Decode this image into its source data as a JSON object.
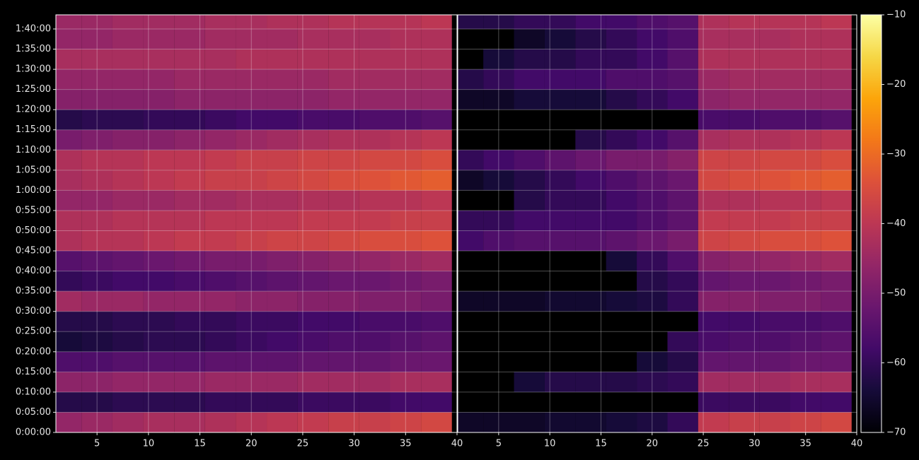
{
  "chart_data": [
    {
      "type": "heatmap",
      "colormap": "inferno",
      "vlim": [
        -70,
        -10
      ],
      "x": [
        2,
        5,
        8,
        11,
        14,
        17,
        20,
        23,
        26,
        29,
        32,
        35,
        38
      ],
      "y": [
        0,
        300,
        600,
        900,
        1200,
        1500,
        1800,
        2100,
        2400,
        2700,
        3000,
        3300,
        3600,
        3900,
        4200,
        4500,
        4800,
        5100,
        5400,
        5700,
        6000
      ],
      "values": [
        [
          -46,
          -45,
          -44,
          -43,
          -43,
          -42,
          -41,
          -40,
          -39,
          -38,
          -38,
          -37,
          -36
        ],
        [
          -62,
          -62,
          -61,
          -61,
          -61,
          -60,
          -60,
          -60,
          -59,
          -59,
          -59,
          -58,
          -58
        ],
        [
          -47,
          -47,
          -46,
          -46,
          -46,
          -45,
          -45,
          -45,
          -44,
          -44,
          -44,
          -43,
          -43
        ],
        [
          -56,
          -56,
          -55,
          -55,
          -55,
          -54,
          -54,
          -54,
          -53,
          -53,
          -53,
          -52,
          -52
        ],
        [
          -64,
          -63,
          -62,
          -61,
          -61,
          -60,
          -59,
          -58,
          -57,
          -56,
          -56,
          -55,
          -54
        ],
        [
          -62,
          -62,
          -61,
          -61,
          -60,
          -60,
          -59,
          -59,
          -58,
          -58,
          -57,
          -57,
          -56
        ],
        [
          -44,
          -45,
          -45,
          -46,
          -46,
          -46,
          -47,
          -47,
          -48,
          -48,
          -49,
          -49,
          -50
        ],
        [
          -60,
          -59,
          -58,
          -58,
          -57,
          -56,
          -55,
          -54,
          -53,
          -52,
          -52,
          -51,
          -50
        ],
        [
          -55,
          -54,
          -53,
          -52,
          -51,
          -50,
          -50,
          -49,
          -48,
          -47,
          -46,
          -45,
          -44
        ],
        [
          -42,
          -41,
          -41,
          -40,
          -39,
          -39,
          -38,
          -37,
          -37,
          -36,
          -35,
          -35,
          -34
        ],
        [
          -42,
          -42,
          -41,
          -41,
          -41,
          -40,
          -40,
          -40,
          -39,
          -39,
          -39,
          -38,
          -38
        ],
        [
          -46,
          -46,
          -45,
          -45,
          -44,
          -44,
          -43,
          -43,
          -42,
          -42,
          -41,
          -41,
          -40
        ],
        [
          -43,
          -42,
          -41,
          -40,
          -39,
          -38,
          -38,
          -37,
          -36,
          -35,
          -34,
          -33,
          -32
        ],
        [
          -42,
          -41,
          -41,
          -40,
          -40,
          -39,
          -38,
          -38,
          -37,
          -37,
          -36,
          -36,
          -35
        ],
        [
          -50,
          -49,
          -48,
          -48,
          -47,
          -46,
          -45,
          -44,
          -43,
          -42,
          -42,
          -41,
          -40
        ],
        [
          -62,
          -61,
          -61,
          -60,
          -60,
          -59,
          -58,
          -58,
          -57,
          -57,
          -56,
          -56,
          -55
        ],
        [
          -48,
          -48,
          -48,
          -48,
          -47,
          -47,
          -47,
          -47,
          -47,
          -46,
          -46,
          -46,
          -46
        ],
        [
          -46,
          -46,
          -46,
          -46,
          -45,
          -45,
          -45,
          -45,
          -45,
          -44,
          -44,
          -44,
          -44
        ],
        [
          -43,
          -43,
          -43,
          -43,
          -43,
          -43,
          -42,
          -42,
          -42,
          -42,
          -42,
          -42,
          -42
        ],
        [
          -46,
          -46,
          -45,
          -45,
          -45,
          -44,
          -44,
          -44,
          -43,
          -43,
          -43,
          -42,
          -42
        ],
        [
          -45,
          -45,
          -44,
          -44,
          -44,
          -43,
          -43,
          -42,
          -42,
          -41,
          -41,
          -41,
          -40
        ]
      ],
      "xlim": [
        1,
        40
      ],
      "ylim": [
        0,
        6210
      ],
      "xticks": [
        5,
        10,
        15,
        20,
        25,
        30,
        35,
        40
      ],
      "yticks": [
        {
          "value": 0,
          "label": "0:00:00"
        },
        {
          "value": 300,
          "label": "0:05:00"
        },
        {
          "value": 600,
          "label": "0:10:00"
        },
        {
          "value": 900,
          "label": "0:15:00"
        },
        {
          "value": 1200,
          "label": "0:20:00"
        },
        {
          "value": 1500,
          "label": "0:25:00"
        },
        {
          "value": 1800,
          "label": "0:30:00"
        },
        {
          "value": 2100,
          "label": "0:35:00"
        },
        {
          "value": 2400,
          "label": "0:40:00"
        },
        {
          "value": 2700,
          "label": "0:45:00"
        },
        {
          "value": 3000,
          "label": "0:50:00"
        },
        {
          "value": 3300,
          "label": "0:55:00"
        },
        {
          "value": 3600,
          "label": "1:00:00"
        },
        {
          "value": 3900,
          "label": "1:05:00"
        },
        {
          "value": 4200,
          "label": "1:10:00"
        },
        {
          "value": 4500,
          "label": "1:15:00"
        },
        {
          "value": 4800,
          "label": "1:20:00"
        },
        {
          "value": 5100,
          "label": "1:25:00"
        },
        {
          "value": 5400,
          "label": "1:30:00"
        },
        {
          "value": 5700,
          "label": "1:35:00"
        },
        {
          "value": 6000,
          "label": "1:40:00"
        }
      ],
      "grid": true
    },
    {
      "type": "heatmap",
      "colormap": "inferno",
      "vlim": [
        -70,
        -10
      ],
      "x": [
        2,
        5,
        8,
        11,
        14,
        17,
        20,
        23,
        26,
        29,
        32,
        35,
        38
      ],
      "y": [
        0,
        300,
        600,
        900,
        1200,
        1500,
        1800,
        2100,
        2400,
        2700,
        3000,
        3300,
        3600,
        3900,
        4200,
        4500,
        4800,
        5100,
        5400,
        5700,
        6000
      ],
      "values": [
        [
          -66,
          -66,
          -66,
          -65,
          -65,
          -64,
          -63,
          -60,
          -39,
          -38,
          -38,
          -37,
          -36
        ],
        [
          null,
          null,
          null,
          null,
          null,
          null,
          null,
          null,
          -59,
          -59,
          -59,
          -58,
          -58
        ],
        [
          null,
          null,
          -64,
          -62,
          -62,
          -62,
          -61,
          -60,
          -44,
          -44,
          -44,
          -43,
          -43
        ],
        [
          null,
          null,
          null,
          null,
          null,
          null,
          -64,
          -62,
          -53,
          -53,
          -53,
          -52,
          -52
        ],
        [
          null,
          null,
          null,
          null,
          null,
          null,
          null,
          -60,
          -57,
          -56,
          -56,
          -55,
          -54
        ],
        [
          null,
          null,
          null,
          null,
          null,
          null,
          null,
          null,
          -58,
          -58,
          -57,
          -57,
          -56
        ],
        [
          -66,
          -66,
          -66,
          -65,
          -65,
          -64,
          -63,
          -60,
          -48,
          -48,
          -49,
          -49,
          -50
        ],
        [
          null,
          null,
          null,
          null,
          null,
          null,
          -62,
          -60,
          -53,
          -52,
          -52,
          -51,
          -50
        ],
        [
          null,
          null,
          null,
          null,
          null,
          -64,
          -60,
          -56,
          -48,
          -47,
          -46,
          -45,
          -44
        ],
        [
          -58,
          -56,
          -55,
          -55,
          -55,
          -54,
          -52,
          -50,
          -37,
          -36,
          -35,
          -35,
          -34
        ],
        [
          -60,
          -60,
          -58,
          -58,
          -58,
          -58,
          -56,
          -54,
          -39,
          -39,
          -39,
          -38,
          -38
        ],
        [
          null,
          null,
          -62,
          -60,
          -60,
          -58,
          -56,
          -54,
          -42,
          -42,
          -41,
          -41,
          -40
        ],
        [
          -66,
          -64,
          -62,
          -60,
          -58,
          -56,
          -54,
          -52,
          -36,
          -35,
          -34,
          -33,
          -32
        ],
        [
          -60,
          -58,
          -56,
          -54,
          -52,
          -50,
          -50,
          -48,
          -37,
          -37,
          -36,
          -36,
          -35
        ],
        [
          null,
          null,
          null,
          null,
          -62,
          -60,
          -58,
          -55,
          -43,
          -42,
          -42,
          -41,
          -40
        ],
        [
          null,
          null,
          null,
          null,
          null,
          null,
          null,
          null,
          -57,
          -57,
          -56,
          -56,
          -55
        ],
        [
          -66,
          -66,
          -64,
          -64,
          -64,
          -62,
          -60,
          -58,
          -47,
          -46,
          -46,
          -46,
          -46
        ],
        [
          -62,
          -60,
          -58,
          -58,
          -58,
          -56,
          -56,
          -55,
          -45,
          -44,
          -44,
          -44,
          -44
        ],
        [
          null,
          -64,
          -62,
          -62,
          -60,
          -60,
          -58,
          -55,
          -42,
          -42,
          -42,
          -42,
          -42
        ],
        [
          null,
          null,
          -66,
          -64,
          -62,
          -60,
          -58,
          -56,
          -43,
          -43,
          -43,
          -42,
          -42
        ],
        [
          -62,
          -62,
          -60,
          -60,
          -58,
          -58,
          -56,
          -55,
          -42,
          -41,
          -41,
          -41,
          -40
        ]
      ],
      "xlim": [
        1,
        40
      ],
      "ylim": [
        0,
        6210
      ],
      "xticks": [
        5,
        10,
        15,
        20,
        25,
        30,
        35,
        40
      ],
      "yticks": [
        0,
        300,
        600,
        900,
        1200,
        1500,
        1800,
        2100,
        2400,
        2700,
        3000,
        3300,
        3600,
        3900,
        4200,
        4500,
        4800,
        5100,
        5400,
        5700,
        6000
      ],
      "grid": true,
      "colorbar": {
        "lim": [
          -70,
          -10
        ],
        "ticks": [
          {
            "value": -70,
            "label": "−70"
          },
          {
            "value": -60,
            "label": "−60"
          },
          {
            "value": -50,
            "label": "−50"
          },
          {
            "value": -40,
            "label": "−40"
          },
          {
            "value": -30,
            "label": "−30"
          },
          {
            "value": -20,
            "label": "−20"
          },
          {
            "value": -10,
            "label": "−10"
          }
        ]
      }
    }
  ]
}
